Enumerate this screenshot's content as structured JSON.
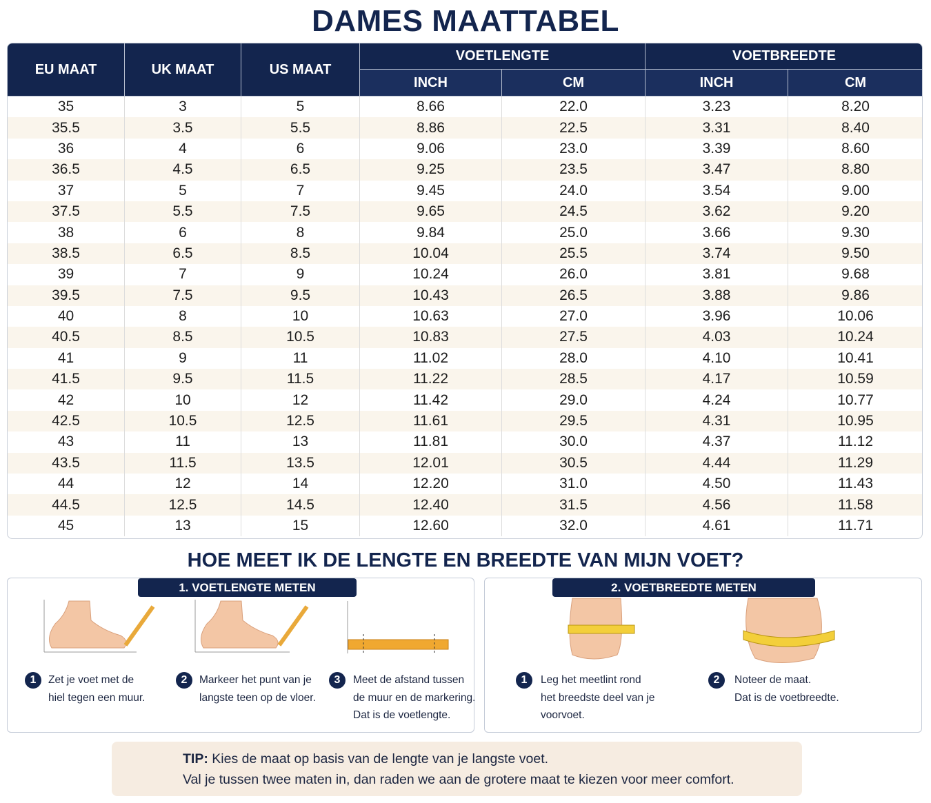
{
  "title": "DAMES MAATTABEL",
  "table": {
    "headers": [
      "EU MAAT",
      "UK MAAT",
      "US MAAT"
    ],
    "groups": [
      {
        "label": "VOETLENGTE",
        "sub": [
          "INCH",
          "CM"
        ]
      },
      {
        "label": "VOETBREEDTE",
        "sub": [
          "INCH",
          "CM"
        ]
      }
    ],
    "rows": [
      [
        "35",
        "3",
        "5",
        "8.66",
        "22.0",
        "3.23",
        "8.20"
      ],
      [
        "35.5",
        "3.5",
        "5.5",
        "8.86",
        "22.5",
        "3.31",
        "8.40"
      ],
      [
        "36",
        "4",
        "6",
        "9.06",
        "23.0",
        "3.39",
        "8.60"
      ],
      [
        "36.5",
        "4.5",
        "6.5",
        "9.25",
        "23.5",
        "3.47",
        "8.80"
      ],
      [
        "37",
        "5",
        "7",
        "9.45",
        "24.0",
        "3.54",
        "9.00"
      ],
      [
        "37.5",
        "5.5",
        "7.5",
        "9.65",
        "24.5",
        "3.62",
        "9.20"
      ],
      [
        "38",
        "6",
        "8",
        "9.84",
        "25.0",
        "3.66",
        "9.30"
      ],
      [
        "38.5",
        "6.5",
        "8.5",
        "10.04",
        "25.5",
        "3.74",
        "9.50"
      ],
      [
        "39",
        "7",
        "9",
        "10.24",
        "26.0",
        "3.81",
        "9.68"
      ],
      [
        "39.5",
        "7.5",
        "9.5",
        "10.43",
        "26.5",
        "3.88",
        "9.86"
      ],
      [
        "40",
        "8",
        "10",
        "10.63",
        "27.0",
        "3.96",
        "10.06"
      ],
      [
        "40.5",
        "8.5",
        "10.5",
        "10.83",
        "27.5",
        "4.03",
        "10.24"
      ],
      [
        "41",
        "9",
        "11",
        "11.02",
        "28.0",
        "4.10",
        "10.41"
      ],
      [
        "41.5",
        "9.5",
        "11.5",
        "11.22",
        "28.5",
        "4.17",
        "10.59"
      ],
      [
        "42",
        "10",
        "12",
        "11.42",
        "29.0",
        "4.24",
        "10.77"
      ],
      [
        "42.5",
        "10.5",
        "12.5",
        "11.61",
        "29.5",
        "4.31",
        "10.95"
      ],
      [
        "43",
        "11",
        "13",
        "11.81",
        "30.0",
        "4.37",
        "11.12"
      ],
      [
        "43.5",
        "11.5",
        "13.5",
        "12.01",
        "30.5",
        "4.44",
        "11.29"
      ],
      [
        "44",
        "12",
        "14",
        "12.20",
        "31.0",
        "4.50",
        "11.43"
      ],
      [
        "44.5",
        "12.5",
        "14.5",
        "12.40",
        "31.5",
        "4.56",
        "11.58"
      ],
      [
        "45",
        "13",
        "15",
        "12.60",
        "32.0",
        "4.61",
        "11.71"
      ]
    ]
  },
  "howto": {
    "title": "HOE MEET IK DE LENGTE EN BREEDTE VAN MIJN VOET?",
    "panels": [
      {
        "title": "1. VOETLENGTE METEN",
        "steps": [
          {
            "num": "1",
            "lines": [
              "Zet je voet met de",
              "hiel tegen een muur."
            ]
          },
          {
            "num": "2",
            "lines": [
              "Markeer het punt van je",
              "langste teen op de vloer."
            ]
          },
          {
            "num": "3",
            "lines": [
              "Meet de afstand tussen",
              "de muur en de markering.",
              "Dat is de voetlengte."
            ]
          }
        ]
      },
      {
        "title": "2. VOETBREEDTE METEN",
        "steps": [
          {
            "num": "1",
            "lines": [
              "Leg het meetlint rond",
              "het breedste deel van je",
              "voorvoet."
            ]
          },
          {
            "num": "2",
            "lines": [
              "Noteer de maat.",
              "Dat is de voetbreedte."
            ]
          }
        ]
      }
    ]
  },
  "tip": {
    "label": "TIP:",
    "lines": [
      "Kies de maat op basis van de lengte van je langste voet.",
      "Val je tussen twee maten in, dan raden we aan de grotere maat te kiezen voor meer comfort."
    ]
  }
}
